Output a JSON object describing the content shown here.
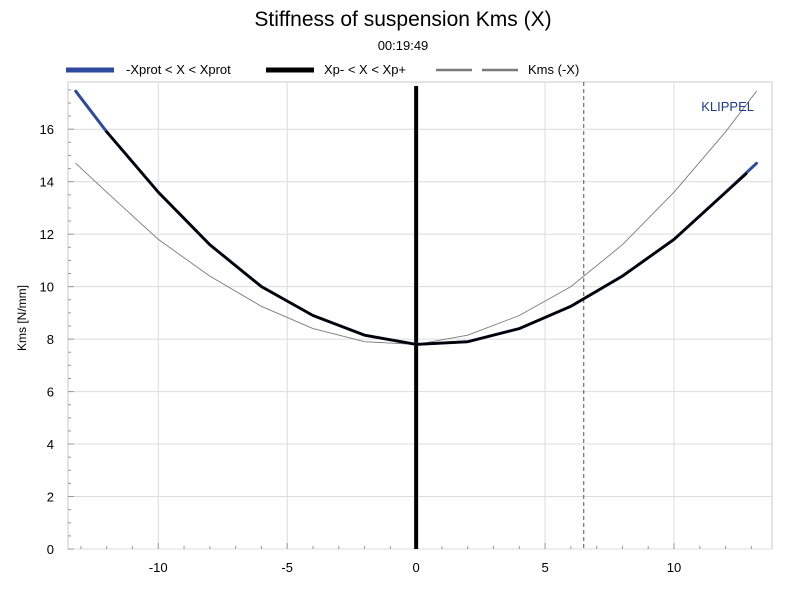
{
  "chart_data": {
    "type": "line",
    "title": "Stiffness of suspension Kms (X)",
    "subtitle": "00:19:49",
    "xlabel": "",
    "ylabel": "Kms [N/mm]",
    "xlim": [
      -13.5,
      13.8
    ],
    "ylim": [
      0,
      17.8
    ],
    "x_ticks": [
      -10,
      -5,
      0,
      5,
      10
    ],
    "y_ticks": [
      0,
      2,
      4,
      6,
      8,
      10,
      12,
      14,
      16
    ],
    "grid": true,
    "legend_position": "top",
    "brand_label": "KLIPPEL",
    "vertical_markers": [
      {
        "x": 0,
        "style": "solid-thick",
        "color": "#000000"
      },
      {
        "x": 6.5,
        "style": "dashed",
        "color": "#555555"
      }
    ],
    "series": [
      {
        "name": "-Xprot < X < Xprot",
        "color": "#2e4a9e",
        "x": [
          -13.2,
          -12,
          -10,
          -8,
          -6,
          -4,
          -2,
          0,
          2,
          4,
          6,
          8,
          10,
          12,
          13.2
        ],
        "y": [
          17.45,
          15.9,
          13.6,
          11.6,
          10.0,
          8.9,
          8.15,
          7.8,
          7.9,
          8.4,
          9.25,
          10.4,
          11.8,
          13.6,
          14.7
        ]
      },
      {
        "name": "Xp- < X < Xp+",
        "color": "#000000",
        "x": [
          -12.0,
          -10,
          -8,
          -6,
          -4,
          -2,
          0,
          2,
          4,
          6,
          8,
          10,
          12.8
        ],
        "y": [
          15.9,
          13.6,
          11.6,
          10.0,
          8.9,
          8.15,
          7.8,
          7.9,
          8.4,
          9.25,
          10.4,
          11.8,
          14.3
        ]
      },
      {
        "name": "Kms (-X)",
        "color": "#7a7a7a",
        "x": [
          -13.2,
          -12,
          -10,
          -8,
          -6,
          -4,
          -2,
          0,
          2,
          4,
          6,
          8,
          10,
          12,
          13.2
        ],
        "y": [
          14.7,
          13.6,
          11.8,
          10.4,
          9.25,
          8.4,
          7.9,
          7.8,
          8.15,
          8.9,
          10.0,
          11.6,
          13.6,
          15.9,
          17.45
        ]
      }
    ]
  }
}
